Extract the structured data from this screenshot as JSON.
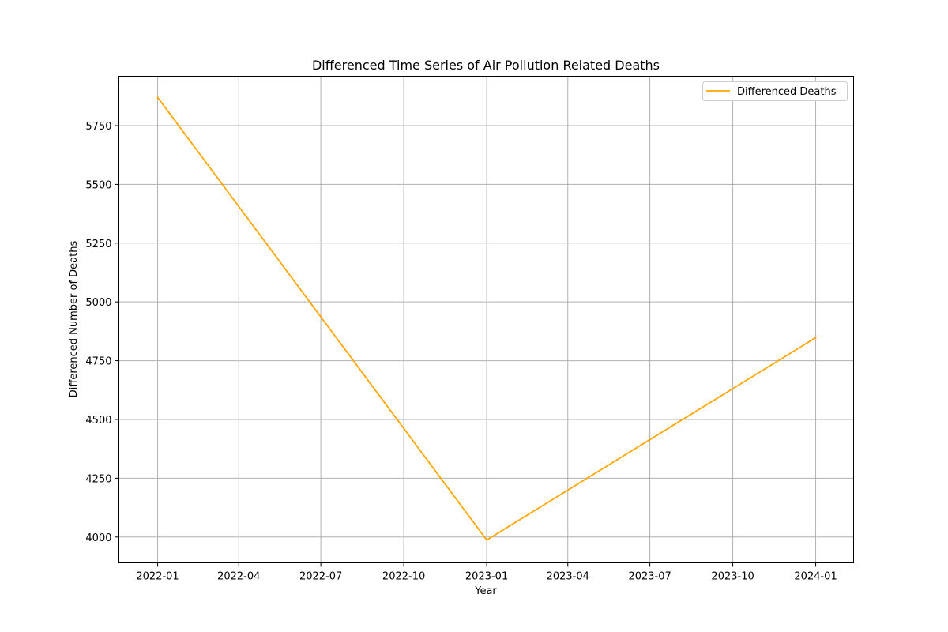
{
  "chart_data": {
    "type": "line",
    "title": "Differenced Time Series of Air Pollution Related Deaths",
    "xlabel": "Year",
    "ylabel": "Differenced Number of Deaths",
    "x_ticks": [
      "2022-01",
      "2022-04",
      "2022-07",
      "2022-10",
      "2023-01",
      "2023-04",
      "2023-07",
      "2023-10",
      "2024-01"
    ],
    "y_ticks": [
      4000,
      4250,
      4500,
      4750,
      5000,
      5250,
      5500,
      5750
    ],
    "xlim": [
      "2021-11-19",
      "2024-02-12"
    ],
    "ylim": [
      3890,
      5960
    ],
    "grid": true,
    "legend_position": "top-right",
    "series": [
      {
        "name": "Differenced Deaths",
        "color": "#FFA500",
        "x": [
          "2022-01-01",
          "2023-01-01",
          "2024-01-01"
        ],
        "y": [
          5870,
          3987,
          4848
        ]
      }
    ]
  }
}
